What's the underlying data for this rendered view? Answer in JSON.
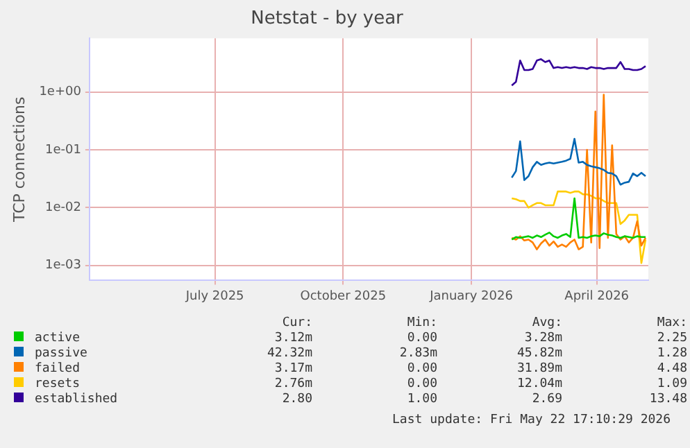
{
  "chart_data": {
    "type": "line",
    "title": "Netstat - by year",
    "ylabel": "TCP connections",
    "log": "y",
    "grid": true,
    "legend": "bottom",
    "marker": "none",
    "line_style": "solid",
    "xlim": [
      "2025-04-17",
      "2026-05-23"
    ],
    "xticks": [
      {
        "value": "2025-07-16",
        "label": "July 2025"
      },
      {
        "value": "2025-10-16",
        "label": "October 2025"
      },
      {
        "value": "2026-01-16",
        "label": "January 2026"
      },
      {
        "value": "2026-04-16",
        "label": "April 2026"
      }
    ],
    "ylim": [
      0.00055,
      8.5
    ],
    "yticks": [
      {
        "value": 0.001,
        "label": "1e-03"
      },
      {
        "value": 0.01,
        "label": "1e-02"
      },
      {
        "value": 0.1,
        "label": "1e-01"
      },
      {
        "value": 1,
        "label": "1e+00"
      }
    ],
    "x": [
      "2026-02-14",
      "2026-02-17",
      "2026-02-20",
      "2026-02-23",
      "2026-02-26",
      "2026-03-01",
      "2026-03-04",
      "2026-03-07",
      "2026-03-10",
      "2026-03-13",
      "2026-03-16",
      "2026-03-19",
      "2026-03-22",
      "2026-03-25",
      "2026-03-28",
      "2026-03-31",
      "2026-04-03",
      "2026-04-06",
      "2026-04-09",
      "2026-04-12",
      "2026-04-15",
      "2026-04-18",
      "2026-04-21",
      "2026-04-24",
      "2026-04-27",
      "2026-04-30",
      "2026-05-03",
      "2026-05-06",
      "2026-05-09",
      "2026-05-12",
      "2026-05-15",
      "2026-05-18",
      "2026-05-21"
    ],
    "series": [
      {
        "name": "active",
        "color": "#00cc00",
        "values": [
          0.0028,
          0.0031,
          0.003,
          0.0031,
          0.0032,
          0.003,
          0.0033,
          0.0031,
          0.0034,
          0.0037,
          0.0032,
          0.003,
          0.0033,
          0.0035,
          0.0031,
          0.0145,
          0.003,
          0.0031,
          0.003,
          0.0032,
          0.0033,
          0.0032,
          0.0036,
          0.0034,
          0.0033,
          0.0031,
          0.003,
          0.0032,
          0.0031,
          0.003,
          0.0032,
          0.0031,
          0.0031
        ]
      },
      {
        "name": "passive",
        "color": "#0066b3",
        "values": [
          0.033,
          0.043,
          0.14,
          0.03,
          0.035,
          0.05,
          0.062,
          0.055,
          0.058,
          0.06,
          0.058,
          0.06,
          0.062,
          0.065,
          0.07,
          0.155,
          0.06,
          0.062,
          0.055,
          0.052,
          0.05,
          0.048,
          0.045,
          0.04,
          0.039,
          0.035,
          0.025,
          0.027,
          0.028,
          0.039,
          0.035,
          0.04,
          0.035
        ]
      },
      {
        "name": "failed",
        "color": "#ff8000",
        "values": [
          0.003,
          0.0028,
          0.0032,
          0.0027,
          0.0028,
          0.0025,
          0.0019,
          0.0024,
          0.0028,
          0.0022,
          0.0026,
          0.0021,
          0.0023,
          0.0021,
          0.0025,
          0.0028,
          0.0019,
          0.0021,
          0.1,
          0.0025,
          0.46,
          0.002,
          0.9,
          0.003,
          0.12,
          0.0035,
          0.0028,
          0.0032,
          0.0025,
          0.003,
          0.0058,
          0.0022,
          0.003
        ]
      },
      {
        "name": "resets",
        "color": "#ffcc00",
        "values": [
          0.0145,
          0.014,
          0.013,
          0.013,
          0.01,
          0.011,
          0.012,
          0.012,
          0.011,
          0.011,
          0.011,
          0.019,
          0.019,
          0.019,
          0.018,
          0.019,
          0.019,
          0.017,
          0.017,
          0.016,
          0.0145,
          0.0145,
          0.013,
          0.012,
          0.012,
          0.012,
          0.0052,
          0.006,
          0.0075,
          0.0075,
          0.0075,
          0.0011,
          0.0028
        ]
      },
      {
        "name": "established",
        "color": "#330099",
        "values": [
          1.3,
          1.5,
          3.5,
          2.4,
          2.4,
          2.5,
          3.5,
          3.7,
          3.3,
          3.5,
          2.6,
          2.7,
          2.6,
          2.7,
          2.6,
          2.7,
          2.6,
          2.6,
          2.5,
          2.7,
          2.6,
          2.6,
          2.5,
          2.6,
          2.6,
          2.6,
          3.3,
          2.5,
          2.5,
          2.4,
          2.4,
          2.5,
          2.8
        ]
      }
    ],
    "annotations": [
      "Cur:",
      "Min:",
      "Avg:",
      "Max:",
      "3.12m",
      "0.00",
      "3.28m",
      "2.25",
      "42.32m",
      "2.83m",
      "45.82m",
      "1.28",
      "3.17m",
      "0.00",
      "31.89m",
      "4.48",
      "2.76m",
      "0.00",
      "12.04m",
      "1.09",
      "2.80",
      "1.00",
      "2.69",
      "13.48",
      "Last update: Fri May 22 17:10:29 2026"
    ]
  }
}
